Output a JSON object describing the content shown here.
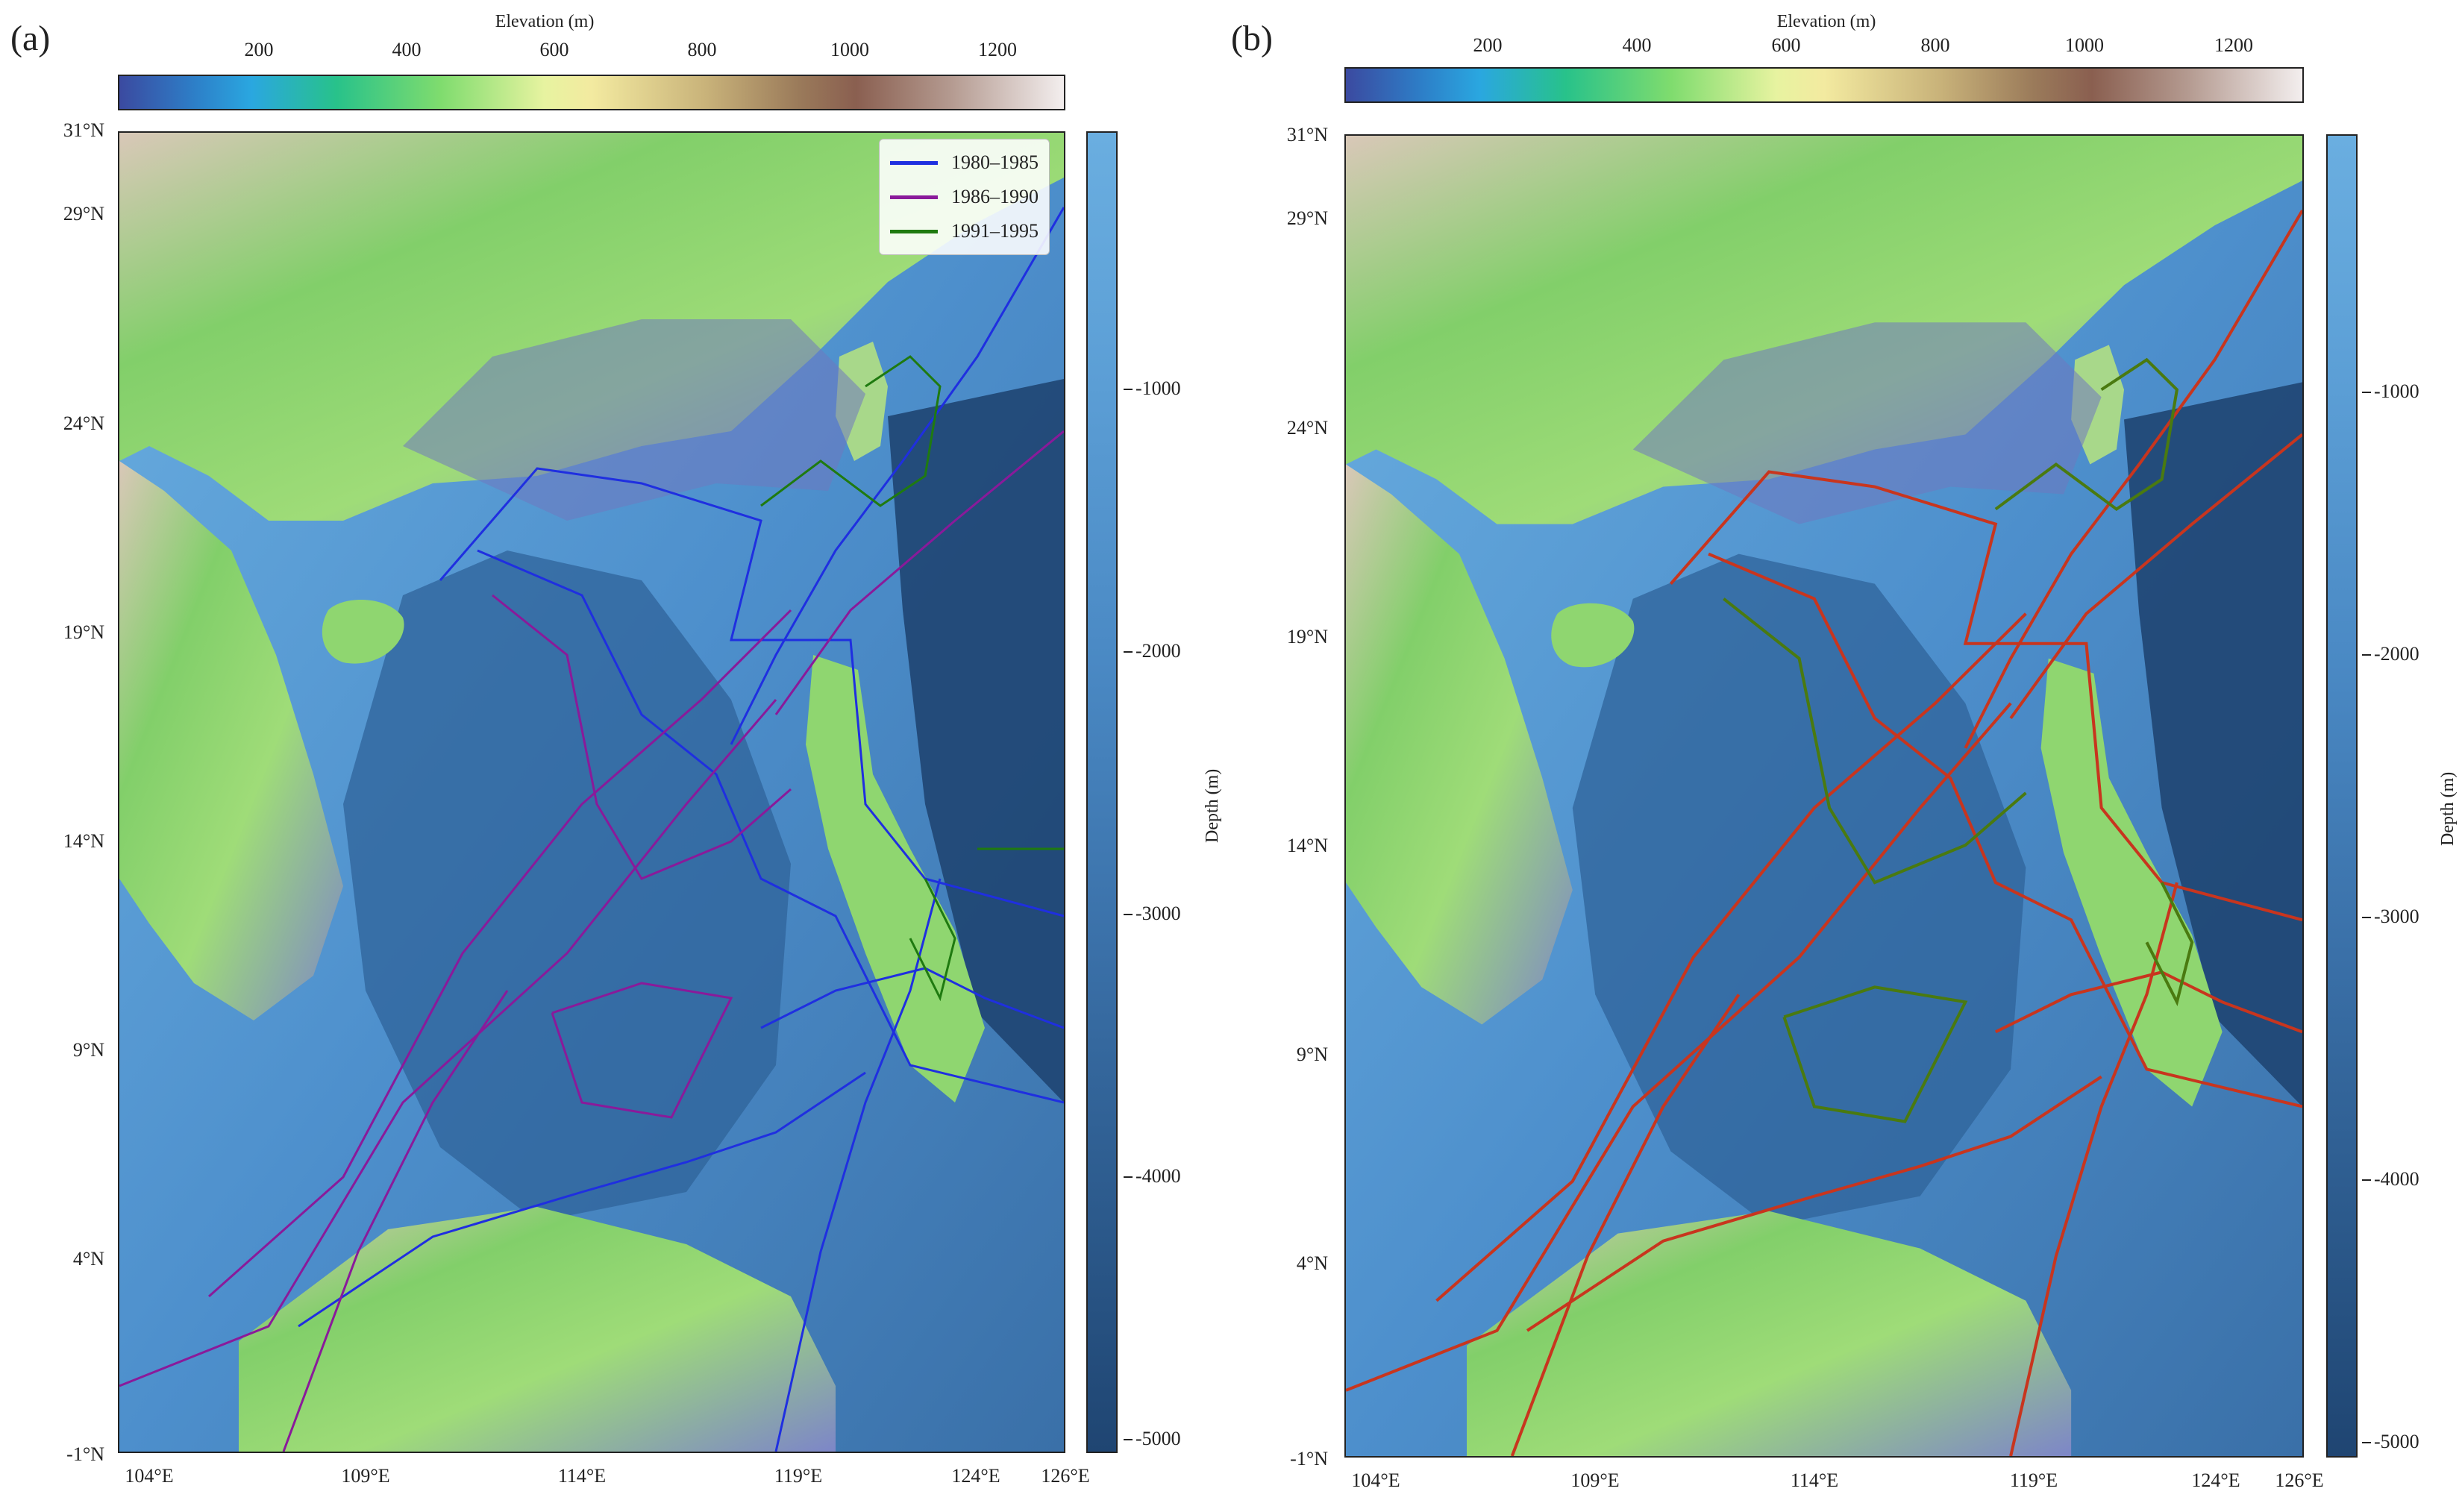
{
  "panels": [
    {
      "letter": "(a)",
      "elevation_title": "Elevation (m)",
      "elevation_ticks": [
        "200",
        "400",
        "600",
        "800",
        "1000",
        "1200"
      ],
      "depth_title": "Depth (m)",
      "depth_ticks": [
        "-1000",
        "-2000",
        "-3000",
        "-4000",
        "-5000"
      ],
      "lat_labels": [
        "31°N",
        "29°N",
        "24°N",
        "19°N",
        "14°N",
        "9°N",
        "4°N",
        "-1°N"
      ],
      "lon_labels": [
        "104°E",
        "109°E",
        "114°E",
        "119°E",
        "124°E",
        "126°E"
      ],
      "legend": [
        {
          "label": "1980–1985",
          "color": "#1f2fe0"
        },
        {
          "label": "1986–1990",
          "color": "#8a1a9a"
        },
        {
          "label": "1991–1995",
          "color": "#1f7a10"
        }
      ]
    },
    {
      "letter": "(b)",
      "elevation_title": "Elevation (m)",
      "elevation_ticks": [
        "200",
        "400",
        "600",
        "800",
        "1000",
        "1200"
      ],
      "depth_title": "Depth (m)",
      "depth_ticks": [
        "-1000",
        "-2000",
        "-3000",
        "-4000",
        "-5000"
      ],
      "lat_labels": [
        "31°N",
        "29°N",
        "24°N",
        "19°N",
        "14°N",
        "9°N",
        "4°N",
        "-1°N"
      ],
      "lon_labels": [
        "104°E",
        "109°E",
        "114°E",
        "119°E",
        "124°E",
        "126°E"
      ],
      "track_colors": {
        "primary": "#c8351e",
        "secondary": "#4a7a10"
      }
    }
  ],
  "colors": {
    "ocean_shallow": "#6aaee0",
    "ocean_deep": "#2c5a8c",
    "land_low": "#7d86c8",
    "land_mid": "#7fd070",
    "land_high": "#c8b8a8"
  }
}
